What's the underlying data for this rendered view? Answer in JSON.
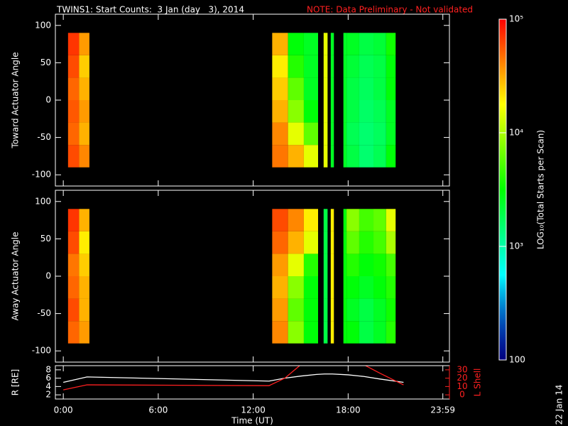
{
  "header": {
    "title": "TWINS1: Start Counts:  3 Jan (day   3), 2014",
    "note": "NOTE: Data Preliminary - Not validated",
    "date_stamp": "22 Jan 14"
  },
  "colorbar": {
    "label": "LOG₁₀(Total Starts per Scan)",
    "log": true,
    "lim": [
      100,
      100000
    ],
    "ticks": [
      {
        "value": 100000,
        "label": "10⁵"
      },
      {
        "value": 10000,
        "label": "10⁴"
      },
      {
        "value": 1000,
        "label": "10³"
      },
      100
    ]
  },
  "chart_data": [
    {
      "type": "heatmap",
      "ylabel": "Toward Actuator Angle",
      "xlim": [
        -0.5,
        24.4
      ],
      "ylim": [
        -115,
        115
      ],
      "yticks": [
        -100,
        -50,
        0,
        50,
        100
      ],
      "angle_edges": [
        -90,
        -60,
        -30,
        0,
        30,
        60,
        90
      ],
      "columns": [
        {
          "t0": 0.3,
          "t1": 1.0,
          "values": [
            60000,
            50000,
            55000,
            50000,
            60000,
            70000
          ]
        },
        {
          "t0": 1.0,
          "t1": 1.65,
          "values": [
            40000,
            30000,
            35000,
            30000,
            25000,
            35000
          ]
        },
        {
          "t0": 13.2,
          "t1": 14.2,
          "values": [
            45000,
            40000,
            30000,
            25000,
            20000,
            30000
          ]
        },
        {
          "t0": 14.2,
          "t1": 15.2,
          "values": [
            30000,
            15000,
            8000,
            6000,
            4000,
            3000
          ]
        },
        {
          "t0": 15.2,
          "t1": 16.1,
          "values": [
            15000,
            6000,
            3000,
            2500,
            2500,
            2500
          ]
        },
        {
          "t0": 16.45,
          "t1": 16.7,
          "values": [
            15000,
            15000,
            15000,
            15000,
            15000,
            15000
          ]
        },
        {
          "t0": 16.9,
          "t1": 17.1,
          "values": [
            2500,
            2500,
            2500,
            2500,
            2500,
            2500
          ]
        },
        {
          "t0": 17.7,
          "t1": 17.9,
          "values": [
            2500,
            2500,
            2500,
            2500,
            2500,
            2500
          ]
        },
        {
          "t0": 17.9,
          "t1": 18.7,
          "values": [
            2000,
            1800,
            2000,
            2000,
            2200,
            2500
          ]
        },
        {
          "t0": 18.7,
          "t1": 19.6,
          "values": [
            1500,
            1500,
            1600,
            1700,
            1800,
            2000
          ]
        },
        {
          "t0": 19.6,
          "t1": 20.4,
          "values": [
            1800,
            1700,
            1800,
            2000,
            2000,
            2200
          ]
        },
        {
          "t0": 20.4,
          "t1": 21.0,
          "values": [
            3000,
            2500,
            2500,
            3000,
            3000,
            3500
          ]
        }
      ]
    },
    {
      "type": "heatmap",
      "ylabel": "Away Actuator Angle",
      "xlim": [
        -0.5,
        24.4
      ],
      "ylim": [
        -115,
        115
      ],
      "yticks": [
        -100,
        -50,
        0,
        50,
        100
      ],
      "angle_edges": [
        -90,
        -60,
        -30,
        0,
        30,
        60,
        90
      ],
      "columns": [
        {
          "t0": 0.3,
          "t1": 1.0,
          "values": [
            50000,
            60000,
            50000,
            45000,
            60000,
            70000
          ]
        },
        {
          "t0": 1.0,
          "t1": 1.65,
          "values": [
            35000,
            30000,
            30000,
            25000,
            20000,
            30000
          ]
        },
        {
          "t0": 13.2,
          "t1": 14.2,
          "values": [
            40000,
            35000,
            30000,
            35000,
            50000,
            60000
          ]
        },
        {
          "t0": 14.2,
          "t1": 15.2,
          "values": [
            8000,
            6000,
            8000,
            15000,
            30000,
            40000
          ]
        },
        {
          "t0": 15.2,
          "t1": 16.1,
          "values": [
            3000,
            3000,
            3000,
            4000,
            15000,
            20000
          ]
        },
        {
          "t0": 16.45,
          "t1": 16.7,
          "values": [
            2000,
            2000,
            2000,
            2000,
            2000,
            2000
          ]
        },
        {
          "t0": 16.9,
          "t1": 17.1,
          "values": [
            20000,
            20000,
            20000,
            20000,
            20000,
            20000
          ]
        },
        {
          "t0": 17.7,
          "t1": 17.9,
          "values": [
            3000,
            3000,
            3000,
            3000,
            3000,
            3000
          ]
        },
        {
          "t0": 17.9,
          "t1": 18.7,
          "values": [
            3000,
            2500,
            3000,
            4000,
            6000,
            8000
          ]
        },
        {
          "t0": 18.7,
          "t1": 19.6,
          "values": [
            2000,
            2000,
            2500,
            3000,
            4000,
            5000
          ]
        },
        {
          "t0": 19.6,
          "t1": 20.4,
          "values": [
            2500,
            2500,
            3000,
            3500,
            5000,
            6000
          ]
        },
        {
          "t0": 20.4,
          "t1": 21.0,
          "values": [
            4000,
            3500,
            4000,
            5000,
            10000,
            15000
          ]
        }
      ]
    },
    {
      "type": "line",
      "xlabel": "Time (UT)",
      "ylabel": "R [RE]",
      "y2label": "L Shell",
      "xlim": [
        -0.5,
        24.4
      ],
      "xticks": [
        {
          "value": 0,
          "label": "0:00"
        },
        {
          "value": 6,
          "label": "6:00"
        },
        {
          "value": 12,
          "label": "12:00"
        },
        {
          "value": 18,
          "label": "18:00"
        },
        {
          "value": 23.983,
          "label": "23:59"
        }
      ],
      "ylim": [
        1,
        9
      ],
      "yticks": [
        2,
        4,
        6,
        8
      ],
      "y2lim": [
        -5,
        35
      ],
      "y2ticks": [
        0,
        10,
        20,
        30
      ],
      "x": [
        0,
        1.5,
        13,
        14,
        15,
        16,
        16.5,
        17,
        18,
        19,
        20,
        21.5
      ],
      "series": [
        {
          "name": "R",
          "color": "#ffffff",
          "values": [
            5,
            6.3,
            5.3,
            6,
            6.5,
            6.9,
            7,
            7,
            6.8,
            6.4,
            5.8,
            5
          ]
        },
        {
          "name": "L Shell",
          "color": "#ff2020",
          "axis": "y2",
          "values": [
            6,
            12,
            11,
            20,
            36,
            null,
            null,
            null,
            null,
            36,
            26,
            12
          ]
        }
      ]
    }
  ]
}
